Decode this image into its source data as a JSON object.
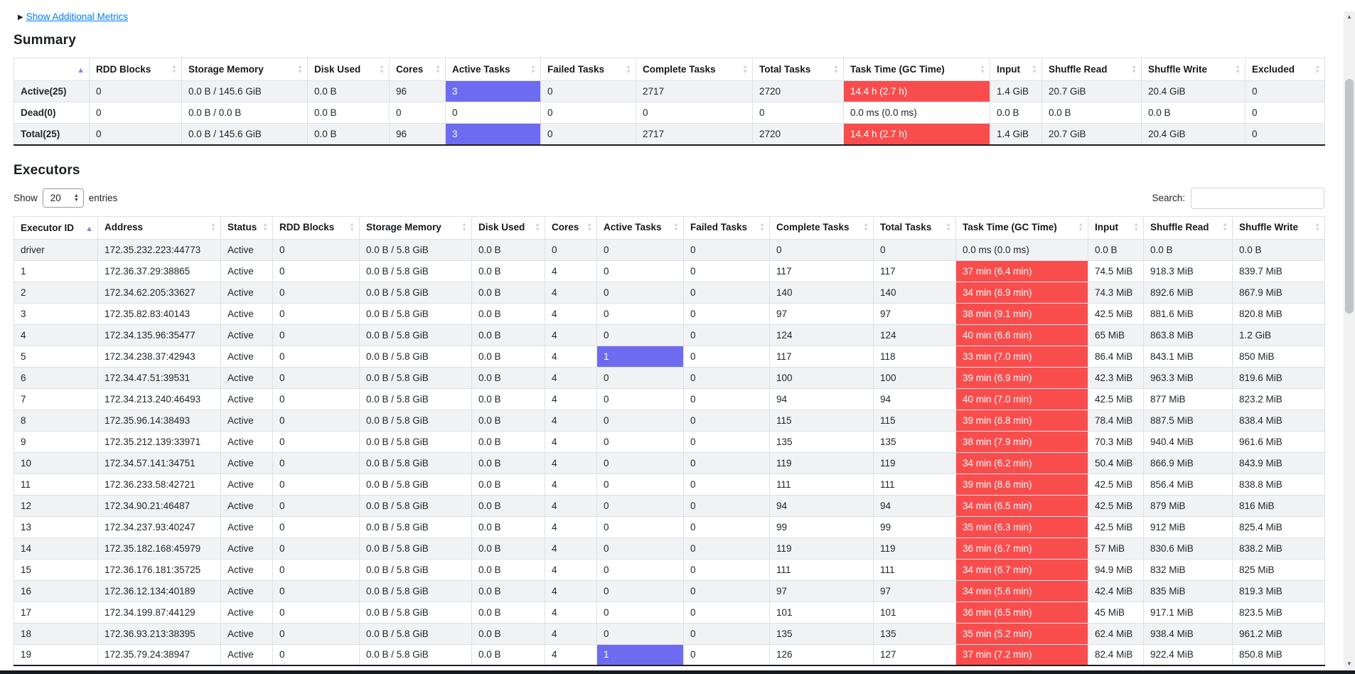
{
  "page": {
    "show_additional_metrics": "Show Additional Metrics"
  },
  "colors": {
    "highlight_blue": "#6d6cf0",
    "highlight_red": "#f94d4d",
    "link_blue": "#007bff"
  },
  "summary": {
    "title": "Summary",
    "columns": [
      {
        "label": "",
        "sort": "asc"
      },
      {
        "label": "RDD Blocks",
        "sort": "both"
      },
      {
        "label": "Storage Memory",
        "sort": "both"
      },
      {
        "label": "Disk Used",
        "sort": "both"
      },
      {
        "label": "Cores",
        "sort": "both"
      },
      {
        "label": "Active Tasks",
        "sort": "both"
      },
      {
        "label": "Failed Tasks",
        "sort": "both"
      },
      {
        "label": "Complete Tasks",
        "sort": "both"
      },
      {
        "label": "Total Tasks",
        "sort": "both"
      },
      {
        "label": "Task Time (GC Time)",
        "sort": "both"
      },
      {
        "label": "Input",
        "sort": "both"
      },
      {
        "label": "Shuffle Read",
        "sort": "both"
      },
      {
        "label": "Shuffle Write",
        "sort": "both"
      },
      {
        "label": "Excluded",
        "sort": "both"
      }
    ],
    "rows": [
      {
        "label": "Active(25)",
        "cells": [
          "0",
          "0.0 B / 145.6 GiB",
          "0.0 B",
          "96",
          [
            "3",
            "blue"
          ],
          "0",
          "2717",
          "2720",
          [
            "14.4 h (2.7 h)",
            "red"
          ],
          "1.4 GiB",
          "20.7 GiB",
          "20.4 GiB",
          "0"
        ]
      },
      {
        "label": "Dead(0)",
        "cells": [
          "0",
          "0.0 B / 0.0 B",
          "0.0 B",
          "0",
          "0",
          "0",
          "0",
          "0",
          "0.0 ms (0.0 ms)",
          "0.0 B",
          "0.0 B",
          "0.0 B",
          "0"
        ]
      },
      {
        "label": "Total(25)",
        "cells": [
          "0",
          "0.0 B / 145.6 GiB",
          "0.0 B",
          "96",
          [
            "3",
            "blue"
          ],
          "0",
          "2717",
          "2720",
          [
            "14.4 h (2.7 h)",
            "red"
          ],
          "1.4 GiB",
          "20.7 GiB",
          "20.4 GiB",
          "0"
        ]
      }
    ]
  },
  "executors": {
    "title": "Executors",
    "show_label": "Show",
    "page_size": "20",
    "entries_label": "entries",
    "search_label": "Search:",
    "search_value": "",
    "columns": [
      {
        "label": "Executor ID",
        "sort": "asc"
      },
      {
        "label": "Address",
        "sort": "both"
      },
      {
        "label": "Status",
        "sort": "both"
      },
      {
        "label": "RDD Blocks",
        "sort": "both"
      },
      {
        "label": "Storage Memory",
        "sort": "both"
      },
      {
        "label": "Disk Used",
        "sort": "both"
      },
      {
        "label": "Cores",
        "sort": "both"
      },
      {
        "label": "Active Tasks",
        "sort": "both"
      },
      {
        "label": "Failed Tasks",
        "sort": "both"
      },
      {
        "label": "Complete Tasks",
        "sort": "both"
      },
      {
        "label": "Total Tasks",
        "sort": "both"
      },
      {
        "label": "Task Time (GC Time)",
        "sort": "both"
      },
      {
        "label": "Input",
        "sort": "both"
      },
      {
        "label": "Shuffle Read",
        "sort": "both"
      },
      {
        "label": "Shuffle Write",
        "sort": "both"
      }
    ],
    "rows": [
      {
        "cells": [
          "driver",
          "172.35.232.223:44773",
          "Active",
          "0",
          "0.0 B / 5.8 GiB",
          "0.0 B",
          "0",
          "0",
          "0",
          "0",
          "0",
          "0.0 ms (0.0 ms)",
          "0.0 B",
          "0.0 B",
          "0.0 B"
        ]
      },
      {
        "cells": [
          "1",
          "172.36.37.29:38865",
          "Active",
          "0",
          "0.0 B / 5.8 GiB",
          "0.0 B",
          "4",
          "0",
          "0",
          "117",
          "117",
          [
            "37 min (6.4 min)",
            "red"
          ],
          "74.5 MiB",
          "918.3 MiB",
          "839.7 MiB"
        ]
      },
      {
        "cells": [
          "2",
          "172.34.62.205:33627",
          "Active",
          "0",
          "0.0 B / 5.8 GiB",
          "0.0 B",
          "4",
          "0",
          "0",
          "140",
          "140",
          [
            "34 min (6.9 min)",
            "red"
          ],
          "74.3 MiB",
          "892.6 MiB",
          "867.9 MiB"
        ]
      },
      {
        "cells": [
          "3",
          "172.35.82.83:40143",
          "Active",
          "0",
          "0.0 B / 5.8 GiB",
          "0.0 B",
          "4",
          "0",
          "0",
          "97",
          "97",
          [
            "38 min (9.1 min)",
            "red"
          ],
          "42.5 MiB",
          "881.6 MiB",
          "820.8 MiB"
        ]
      },
      {
        "cells": [
          "4",
          "172.34.135.96:35477",
          "Active",
          "0",
          "0.0 B / 5.8 GiB",
          "0.0 B",
          "4",
          "0",
          "0",
          "124",
          "124",
          [
            "40 min (6.6 min)",
            "red"
          ],
          "65 MiB",
          "863.8 MiB",
          "1.2 GiB"
        ]
      },
      {
        "cells": [
          "5",
          "172.34.238.37:42943",
          "Active",
          "0",
          "0.0 B / 5.8 GiB",
          "0.0 B",
          "4",
          [
            "1",
            "blue"
          ],
          "0",
          "117",
          "118",
          [
            "33 min (7.0 min)",
            "red"
          ],
          "86.4 MiB",
          "843.1 MiB",
          "850 MiB"
        ]
      },
      {
        "cells": [
          "6",
          "172.34.47.51:39531",
          "Active",
          "0",
          "0.0 B / 5.8 GiB",
          "0.0 B",
          "4",
          "0",
          "0",
          "100",
          "100",
          [
            "39 min (6.9 min)",
            "red"
          ],
          "42.3 MiB",
          "963.3 MiB",
          "819.6 MiB"
        ]
      },
      {
        "cells": [
          "7",
          "172.34.213.240:46493",
          "Active",
          "0",
          "0.0 B / 5.8 GiB",
          "0.0 B",
          "4",
          "0",
          "0",
          "94",
          "94",
          [
            "40 min (7.0 min)",
            "red"
          ],
          "42.5 MiB",
          "877 MiB",
          "823.2 MiB"
        ]
      },
      {
        "cells": [
          "8",
          "172.35.96.14:38493",
          "Active",
          "0",
          "0.0 B / 5.8 GiB",
          "0.0 B",
          "4",
          "0",
          "0",
          "115",
          "115",
          [
            "39 min (6.8 min)",
            "red"
          ],
          "78.4 MiB",
          "887.5 MiB",
          "838.4 MiB"
        ]
      },
      {
        "cells": [
          "9",
          "172.35.212.139:33971",
          "Active",
          "0",
          "0.0 B / 5.8 GiB",
          "0.0 B",
          "4",
          "0",
          "0",
          "135",
          "135",
          [
            "38 min (7.9 min)",
            "red"
          ],
          "70.3 MiB",
          "940.4 MiB",
          "961.6 MiB"
        ]
      },
      {
        "cells": [
          "10",
          "172.34.57.141:34751",
          "Active",
          "0",
          "0.0 B / 5.8 GiB",
          "0.0 B",
          "4",
          "0",
          "0",
          "119",
          "119",
          [
            "34 min (6.2 min)",
            "red"
          ],
          "50.4 MiB",
          "866.9 MiB",
          "843.9 MiB"
        ]
      },
      {
        "cells": [
          "11",
          "172.36.233.58:42721",
          "Active",
          "0",
          "0.0 B / 5.8 GiB",
          "0.0 B",
          "4",
          "0",
          "0",
          "111",
          "111",
          [
            "39 min (8.6 min)",
            "red"
          ],
          "42.5 MiB",
          "856.4 MiB",
          "838.8 MiB"
        ]
      },
      {
        "cells": [
          "12",
          "172.34.90.21:46487",
          "Active",
          "0",
          "0.0 B / 5.8 GiB",
          "0.0 B",
          "4",
          "0",
          "0",
          "94",
          "94",
          [
            "34 min (6.5 min)",
            "red"
          ],
          "42.5 MiB",
          "879 MiB",
          "816 MiB"
        ]
      },
      {
        "cells": [
          "13",
          "172.34.237.93:40247",
          "Active",
          "0",
          "0.0 B / 5.8 GiB",
          "0.0 B",
          "4",
          "0",
          "0",
          "99",
          "99",
          [
            "35 min (6.3 min)",
            "red"
          ],
          "42.5 MiB",
          "912 MiB",
          "825.4 MiB"
        ]
      },
      {
        "cells": [
          "14",
          "172.35.182.168:45979",
          "Active",
          "0",
          "0.0 B / 5.8 GiB",
          "0.0 B",
          "4",
          "0",
          "0",
          "119",
          "119",
          [
            "36 min (6.7 min)",
            "red"
          ],
          "57 MiB",
          "830.6 MiB",
          "838.2 MiB"
        ]
      },
      {
        "cells": [
          "15",
          "172.36.176.181:35725",
          "Active",
          "0",
          "0.0 B / 5.8 GiB",
          "0.0 B",
          "4",
          "0",
          "0",
          "111",
          "111",
          [
            "34 min (6.7 min)",
            "red"
          ],
          "94.9 MiB",
          "832 MiB",
          "825 MiB"
        ]
      },
      {
        "cells": [
          "16",
          "172.36.12.134:40189",
          "Active",
          "0",
          "0.0 B / 5.8 GiB",
          "0.0 B",
          "4",
          "0",
          "0",
          "97",
          "97",
          [
            "34 min (5.6 min)",
            "red"
          ],
          "42.4 MiB",
          "835 MiB",
          "819.3 MiB"
        ]
      },
      {
        "cells": [
          "17",
          "172.34.199.87:44129",
          "Active",
          "0",
          "0.0 B / 5.8 GiB",
          "0.0 B",
          "4",
          "0",
          "0",
          "101",
          "101",
          [
            "36 min (6.5 min)",
            "red"
          ],
          "45 MiB",
          "917.1 MiB",
          "823.5 MiB"
        ]
      },
      {
        "cells": [
          "18",
          "172.36.93.213:38395",
          "Active",
          "0",
          "0.0 B / 5.8 GiB",
          "0.0 B",
          "4",
          "0",
          "0",
          "135",
          "135",
          [
            "35 min (5.2 min)",
            "red"
          ],
          "62.4 MiB",
          "938.4 MiB",
          "961.2 MiB"
        ]
      },
      {
        "cells": [
          "19",
          "172.35.79.24:38947",
          "Active",
          "0",
          "0.0 B / 5.8 GiB",
          "0.0 B",
          "4",
          [
            "1",
            "blue"
          ],
          "0",
          "126",
          "127",
          [
            "37 min (7.2 min)",
            "red"
          ],
          "82.4 MiB",
          "922.4 MiB",
          "850.8 MiB"
        ]
      }
    ]
  }
}
